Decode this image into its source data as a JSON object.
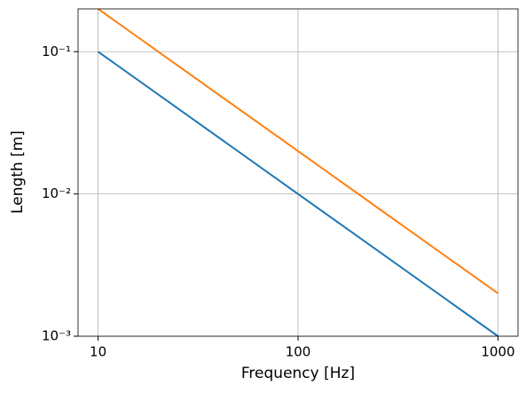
{
  "chart_data": {
    "type": "line",
    "xlabel": "Frequency [Hz]",
    "ylabel": "Length [m]",
    "x": [
      10,
      100,
      1000
    ],
    "series": [
      {
        "color": "#1f77b4",
        "values": [
          0.1,
          0.01,
          0.001
        ]
      },
      {
        "color": "#ff7f0e",
        "values": [
          0.2,
          0.02,
          0.002
        ]
      }
    ],
    "xscale": "log",
    "yscale": "log",
    "xlim": [
      7.94,
      1259
    ],
    "ylim": [
      0.001,
      0.2
    ],
    "xticks": [
      10,
      100,
      1000
    ],
    "yticks": [
      {
        "value": 0.001,
        "label": "10⁻³"
      },
      {
        "value": 0.01,
        "label": "10⁻²"
      },
      {
        "value": 0.1,
        "label": "10⁻¹"
      }
    ],
    "grid": true
  }
}
